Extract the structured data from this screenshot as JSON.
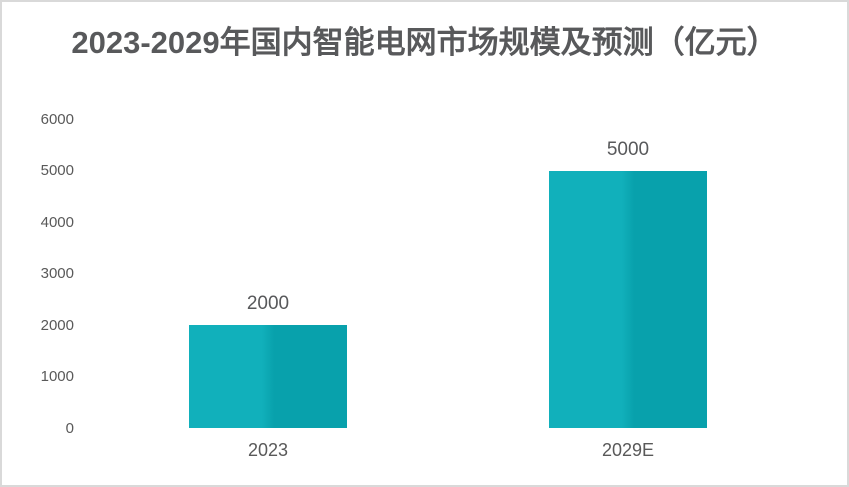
{
  "card": {
    "background": "#ffffff",
    "border_color": "#d9d9d9"
  },
  "chart_data": {
    "type": "bar",
    "title": "2023-2029年国内智能电网市场规模及预测（亿元）",
    "title_color": "#58595b",
    "categories": [
      "2023",
      "2029E"
    ],
    "values": [
      2000,
      5000
    ],
    "data_labels": [
      "2000",
      "5000"
    ],
    "xlabel": "",
    "ylabel": "",
    "ylim": [
      0,
      6000
    ],
    "yticks": [
      0,
      1000,
      2000,
      3000,
      4000,
      5000,
      6000
    ],
    "grid": false,
    "legend": false,
    "axis_label_color": "#595959",
    "bar_color_light": "#11b0bb",
    "bar_color_dark": "#08a1ac"
  }
}
